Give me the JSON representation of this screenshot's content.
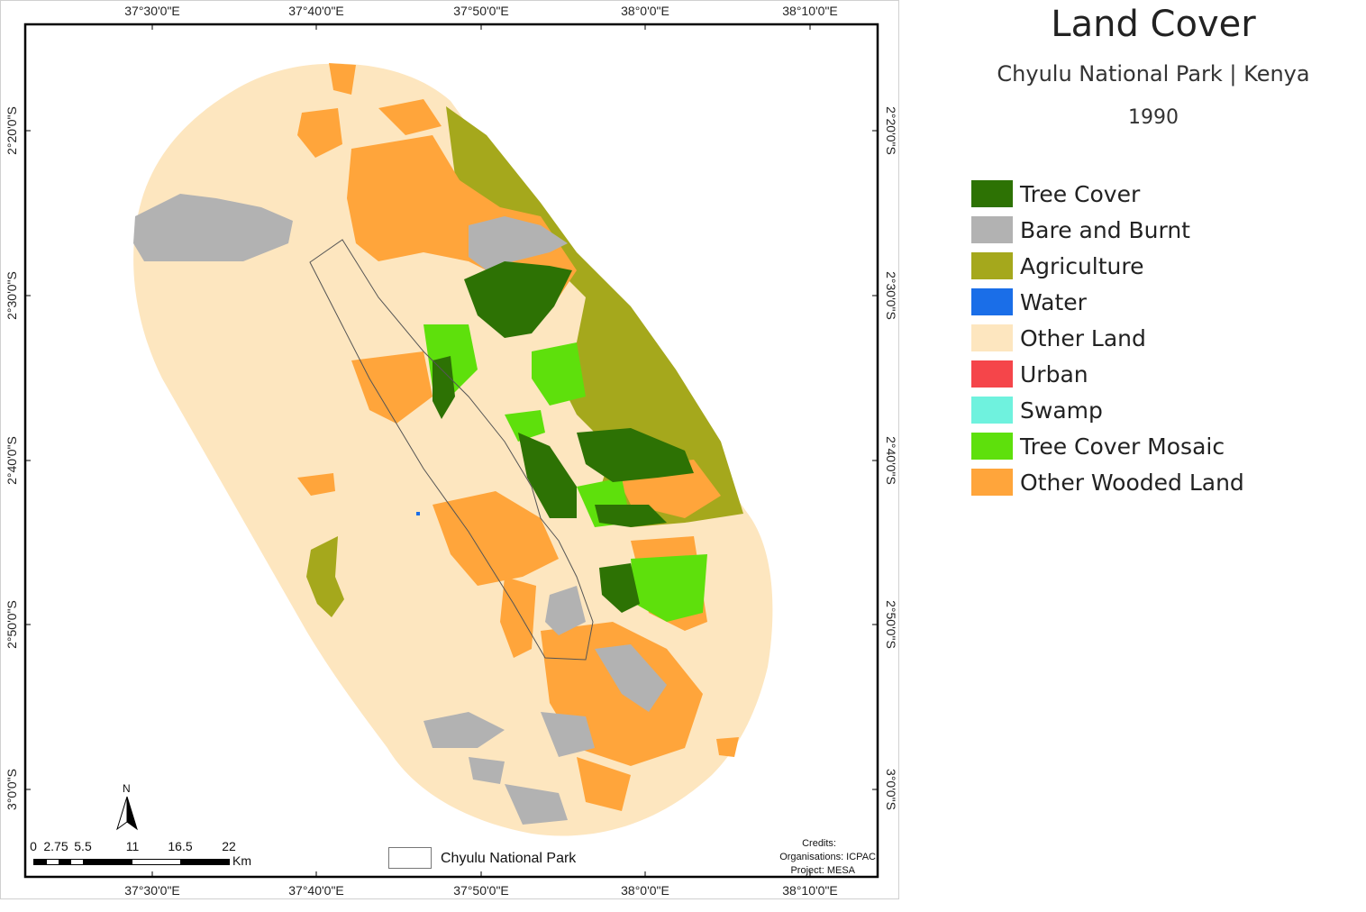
{
  "legend": {
    "title": "Land Cover",
    "subtitle": "Chyulu National Park | Kenya",
    "year": "1990",
    "items": [
      {
        "label": "Tree Cover",
        "color": "#2d7204"
      },
      {
        "label": "Bare and Burnt",
        "color": "#b2b2b2"
      },
      {
        "label": "Agriculture",
        "color": "#a5a81c"
      },
      {
        "label": "Water",
        "color": "#1a6ee8"
      },
      {
        "label": "Other Land",
        "color": "#fde6bf"
      },
      {
        "label": "Urban",
        "color": "#f5454a"
      },
      {
        "label": "Swamp",
        "color": "#6ff2de"
      },
      {
        "label": "Tree Cover Mosaic",
        "color": "#5ee00c"
      },
      {
        "label": "Other Wooded Land",
        "color": "#ffa53b"
      }
    ]
  },
  "map": {
    "longitude_labels": [
      "37°30'0\"E",
      "37°40'0\"E",
      "37°50'0\"E",
      "38°0'0\"E",
      "38°10'0\"E"
    ],
    "latitude_labels": [
      "2°20'0\"S",
      "2°30'0\"S",
      "2°40'0\"S",
      "2°50'0\"S",
      "3°0'0\"S"
    ],
    "park_legend_label": "Chyulu National Park",
    "north_arrow_label": "N"
  },
  "scale_bar": {
    "ticks": [
      "0",
      "2.75",
      "5.5",
      "11",
      "16.5",
      "22"
    ],
    "unit": "Km"
  },
  "credits": {
    "heading": "Credits:",
    "organisations": "Organisations: ICPAC",
    "project": "Project: MESA"
  }
}
